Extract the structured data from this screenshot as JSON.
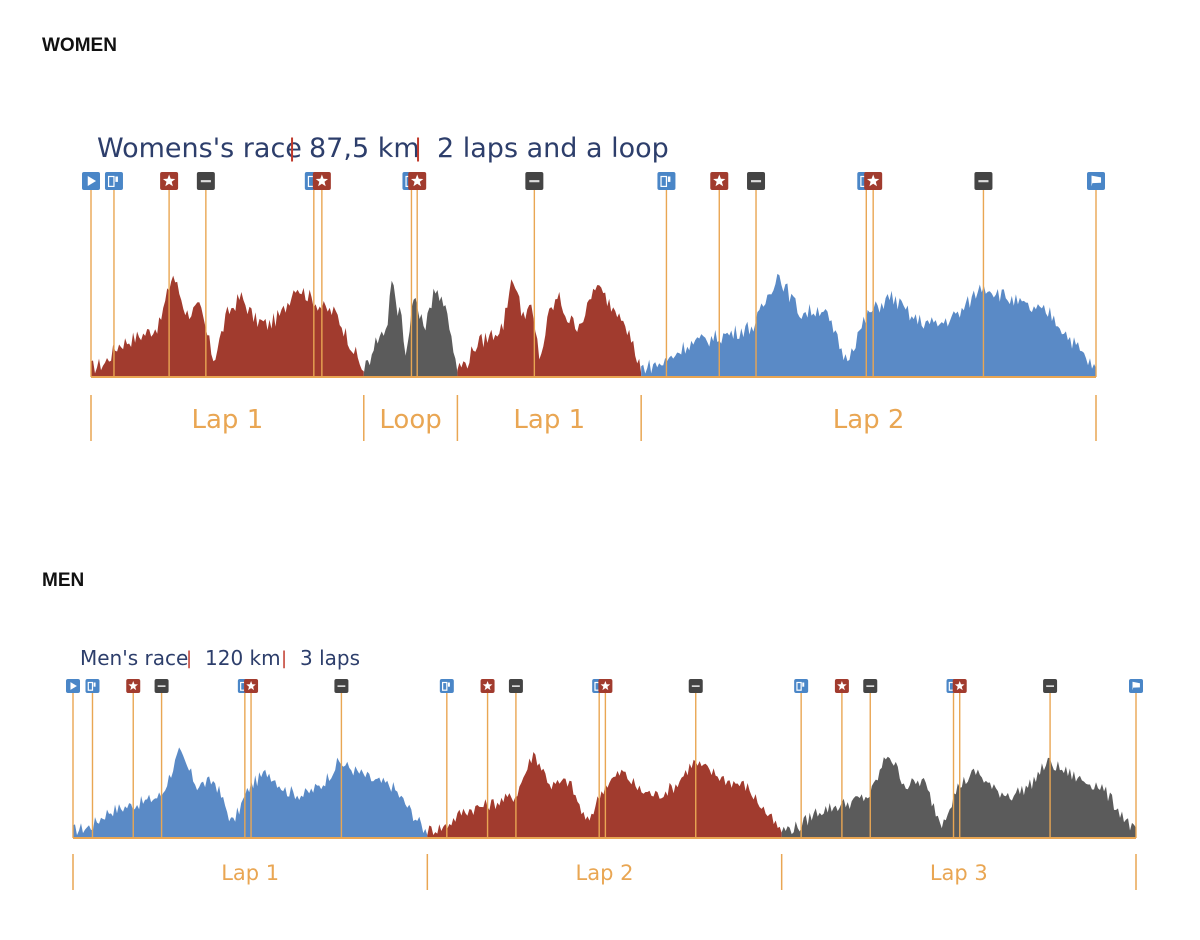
{
  "women": {
    "heading": "WOMEN",
    "race_name": "Womens's race",
    "distance": "87,5 km",
    "laps_desc": "2 laps and a loop",
    "segments": [
      {
        "label": "Lap 1",
        "from_km": 0,
        "to_km": 23.75,
        "color": "#a13b2e"
      },
      {
        "label": "Loop",
        "from_km": 23.75,
        "to_km": 31.9,
        "color": "#5b5b5b"
      },
      {
        "label": "Lap 1",
        "from_km": 31.9,
        "to_km": 47.9,
        "color": "#a13b2e"
      },
      {
        "label": "Lap 2",
        "from_km": 47.9,
        "to_km": 87.5,
        "color": "#5a8ac6"
      }
    ],
    "markers": [
      {
        "km": 0,
        "icon": "play-icon",
        "kind": "start"
      },
      {
        "km": 2,
        "icon": "climb-1-icon",
        "kind": "climb"
      },
      {
        "km": 6.8,
        "icon": "star-icon",
        "kind": "sprint"
      },
      {
        "km": 10,
        "icon": "feed-icon",
        "kind": "feed"
      },
      {
        "km": 19.4,
        "icon": "climb-2-icon",
        "kind": "climb"
      },
      {
        "km": 20.1,
        "icon": "star-icon",
        "kind": "sprint"
      },
      {
        "km": 27.9,
        "icon": "climb-2-icon",
        "kind": "climb"
      },
      {
        "km": 28.4,
        "icon": "star-icon",
        "kind": "sprint"
      },
      {
        "km": 38.6,
        "icon": "feed-icon",
        "kind": "feed"
      },
      {
        "km": 50.1,
        "icon": "climb-1-icon",
        "kind": "climb"
      },
      {
        "km": 54.7,
        "icon": "star-icon",
        "kind": "sprint"
      },
      {
        "km": 57.9,
        "icon": "feed-icon",
        "kind": "feed"
      },
      {
        "km": 67.5,
        "icon": "climb-2-icon",
        "kind": "climb"
      },
      {
        "km": 68.1,
        "icon": "star-icon",
        "kind": "sprint"
      },
      {
        "km": 77.7,
        "icon": "feed-icon",
        "kind": "feed"
      },
      {
        "km": 87.5,
        "icon": "flag-icon",
        "kind": "finish"
      }
    ]
  },
  "men": {
    "heading": "MEN",
    "race_name": "Men's race",
    "distance": "120 km",
    "laps_desc": "3 laps",
    "segments": [
      {
        "label": "Lap 1",
        "from_km": 0,
        "to_km": 40,
        "color": "#5a8ac6"
      },
      {
        "label": "Lap 2",
        "from_km": 40,
        "to_km": 80,
        "color": "#a13b2e"
      },
      {
        "label": "Lap 3",
        "from_km": 80,
        "to_km": 120,
        "color": "#5b5b5b"
      }
    ],
    "markers": [
      {
        "km": 0,
        "icon": "play-icon",
        "kind": "start"
      },
      {
        "km": 2.2,
        "icon": "climb-1-icon",
        "kind": "climb"
      },
      {
        "km": 6.8,
        "icon": "star-icon",
        "kind": "sprint"
      },
      {
        "km": 10,
        "icon": "feed-icon",
        "kind": "feed"
      },
      {
        "km": 19.4,
        "icon": "climb-2-icon",
        "kind": "climb"
      },
      {
        "km": 20.1,
        "icon": "star-icon",
        "kind": "sprint"
      },
      {
        "km": 30.3,
        "icon": "feed-icon",
        "kind": "feed"
      },
      {
        "km": 42.2,
        "icon": "climb-1-icon",
        "kind": "climb"
      },
      {
        "km": 46.8,
        "icon": "star-icon",
        "kind": "sprint"
      },
      {
        "km": 50,
        "icon": "feed-icon",
        "kind": "feed"
      },
      {
        "km": 59.4,
        "icon": "climb-2-icon",
        "kind": "climb"
      },
      {
        "km": 60.1,
        "icon": "star-icon",
        "kind": "sprint"
      },
      {
        "km": 70.3,
        "icon": "feed-icon",
        "kind": "feed"
      },
      {
        "km": 82.2,
        "icon": "climb-1-icon",
        "kind": "climb"
      },
      {
        "km": 86.8,
        "icon": "star-icon",
        "kind": "sprint"
      },
      {
        "km": 90,
        "icon": "feed-icon",
        "kind": "feed"
      },
      {
        "km": 99.4,
        "icon": "climb-2-icon",
        "kind": "climb"
      },
      {
        "km": 100.1,
        "icon": "star-icon",
        "kind": "sprint"
      },
      {
        "km": 110.3,
        "icon": "feed-icon",
        "kind": "feed"
      },
      {
        "km": 120,
        "icon": "flag-icon",
        "kind": "finish"
      }
    ]
  },
  "colors": {
    "navy": "#2d3e6b",
    "orange": "#e9a653",
    "red_separator": "#c0392b",
    "blue_icon": "#4a86c7",
    "red_icon": "#a13b2e",
    "grey_icon": "#444444"
  }
}
